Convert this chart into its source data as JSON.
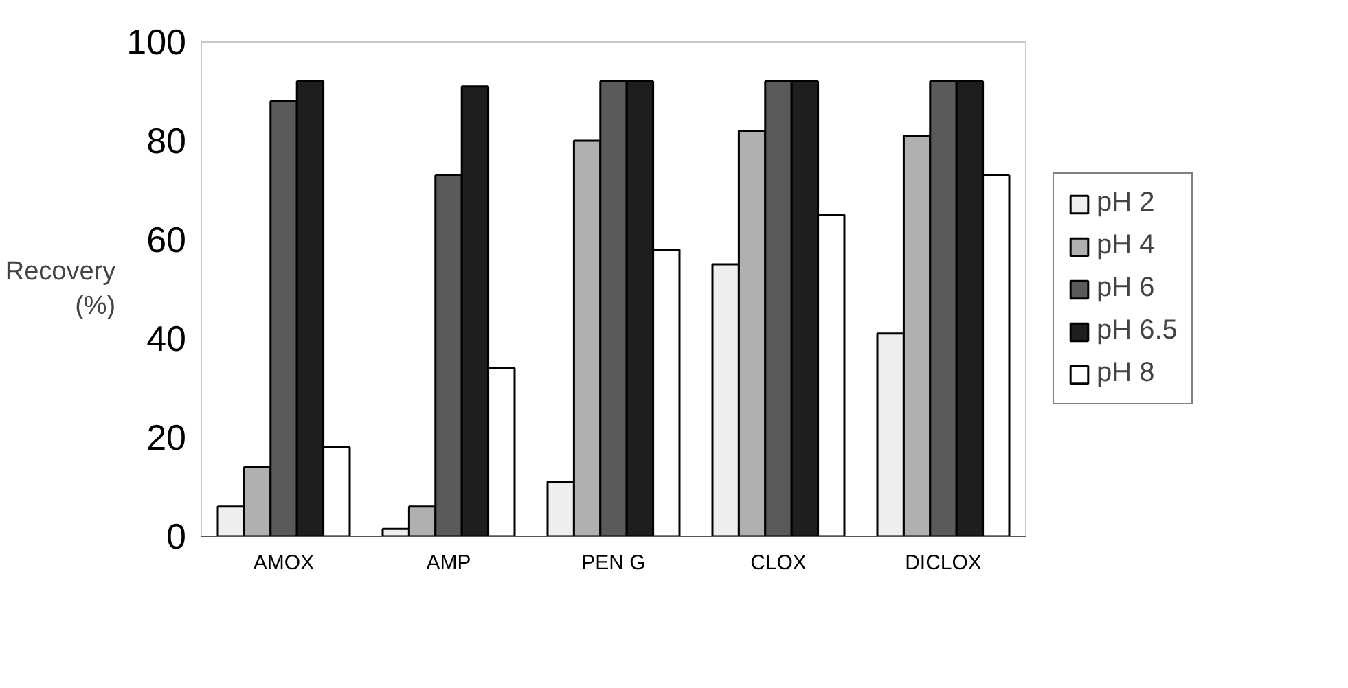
{
  "chart_data": {
    "type": "bar",
    "ylabel": "Recovery (%)",
    "categories": [
      "AMOX",
      "AMP",
      "PEN G",
      "CLOX",
      "DICLOX"
    ],
    "series": [
      {
        "name": "pH 2",
        "color": "#eeeeee",
        "values": [
          6,
          1.5,
          11,
          55,
          41
        ]
      },
      {
        "name": "pH 4",
        "color": "#b0b0b0",
        "values": [
          14,
          6,
          80,
          82,
          81
        ]
      },
      {
        "name": "pH 6",
        "color": "#5a5a5a",
        "values": [
          88,
          73,
          92,
          92,
          92
        ]
      },
      {
        "name": "pH 6.5",
        "color": "#1e1e1e",
        "values": [
          92,
          91,
          92,
          92,
          92
        ]
      },
      {
        "name": "pH 8",
        "color": "#ffffff",
        "values": [
          18,
          34,
          58,
          65,
          73
        ]
      }
    ],
    "ylim": [
      0,
      100
    ],
    "yticks": [
      0,
      20,
      40,
      60,
      80,
      100
    ],
    "grid": false,
    "legend": "right"
  }
}
